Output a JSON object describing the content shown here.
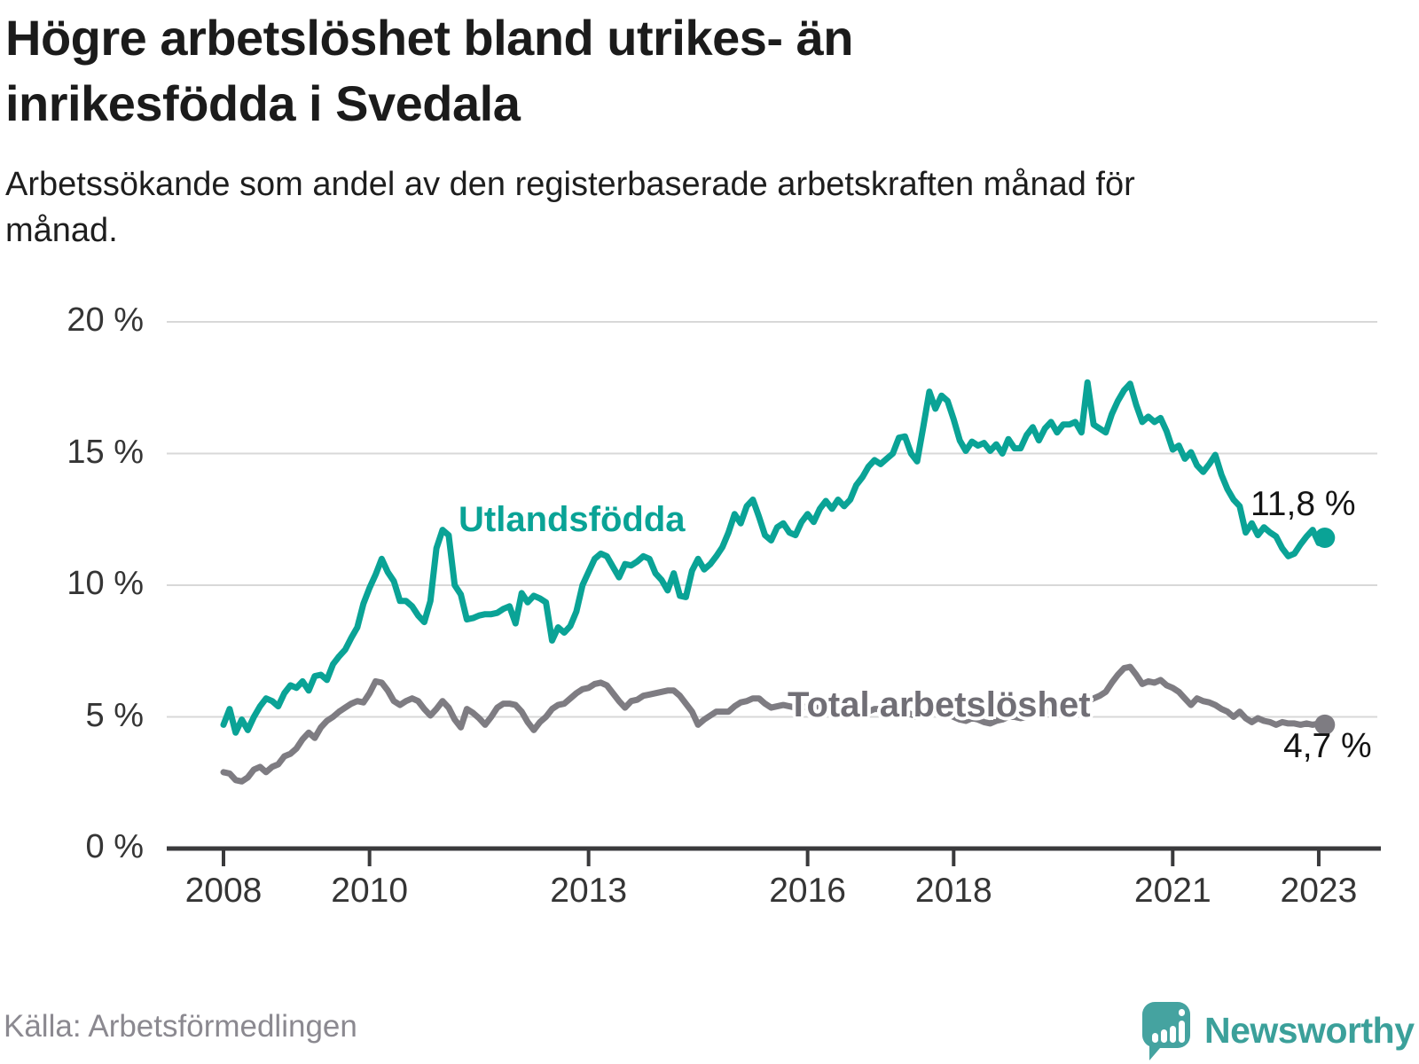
{
  "header": {
    "title": "Högre arbetslöshet bland utrikes- än inrikesfödda i Svedala",
    "subtitle": "Arbetssökande som andel av den registerbaserade arbetskraften månad för månad."
  },
  "footer": {
    "source": "Källa: Arbetsförmedlingen",
    "brand": "Newsworthy"
  },
  "chart_data": {
    "type": "line",
    "title": "Högre arbetslöshet bland utrikes- än inrikesfödda i Svedala",
    "subtitle": "Arbetssökande som andel av den registerbaserade arbetskraften månad för månad.",
    "x_unit": "month",
    "x_start_year": 2008,
    "x_end": "2023-02",
    "ylim": [
      0,
      20
    ],
    "grid": "horizontal",
    "yticks": [
      {
        "label": "0 %",
        "value": 0
      },
      {
        "label": "5 %",
        "value": 5
      },
      {
        "label": "10 %",
        "value": 10
      },
      {
        "label": "15 %",
        "value": 15
      },
      {
        "label": "20 %",
        "value": 20
      }
    ],
    "xticks": [
      2008,
      2010,
      2013,
      2016,
      2018,
      2021,
      2023
    ],
    "series": [
      {
        "name": "Utlandsfödda",
        "color": "#0aa396",
        "end_label": "11,8 %",
        "end_value": 11.8,
        "values": [
          4.7,
          5.3,
          4.4,
          4.9,
          4.5,
          5.0,
          5.4,
          5.7,
          5.6,
          5.4,
          5.9,
          6.2,
          6.1,
          6.35,
          6.0,
          6.55,
          6.6,
          6.4,
          7.0,
          7.3,
          7.55,
          8.0,
          8.4,
          9.3,
          9.9,
          10.4,
          11.0,
          10.5,
          10.15,
          9.4,
          9.4,
          9.2,
          8.85,
          8.6,
          9.4,
          11.4,
          12.1,
          11.9,
          10.0,
          9.65,
          8.7,
          8.75,
          8.85,
          8.9,
          8.9,
          8.95,
          9.1,
          9.2,
          8.55,
          9.7,
          9.35,
          9.6,
          9.5,
          9.35,
          7.9,
          8.4,
          8.2,
          8.45,
          9.0,
          10.0,
          10.5,
          11.0,
          11.2,
          11.1,
          10.7,
          10.3,
          10.8,
          10.75,
          10.9,
          11.1,
          11.0,
          10.45,
          10.2,
          9.8,
          10.45,
          9.6,
          9.55,
          10.55,
          11.0,
          10.6,
          10.8,
          11.1,
          11.45,
          12.0,
          12.7,
          12.35,
          13.0,
          13.25,
          12.6,
          11.9,
          11.7,
          12.2,
          12.35,
          12.0,
          11.9,
          12.4,
          12.7,
          12.4,
          12.9,
          13.2,
          12.9,
          13.25,
          13.0,
          13.25,
          13.8,
          14.1,
          14.5,
          14.75,
          14.6,
          14.8,
          15.0,
          15.6,
          15.65,
          15.0,
          14.7,
          16.0,
          17.35,
          16.7,
          17.2,
          17.0,
          16.3,
          15.5,
          15.1,
          15.45,
          15.3,
          15.4,
          15.1,
          15.35,
          15.0,
          15.55,
          15.2,
          15.2,
          15.7,
          16.0,
          15.5,
          15.95,
          16.2,
          15.8,
          16.1,
          16.1,
          16.2,
          15.8,
          17.7,
          16.1,
          15.95,
          15.8,
          16.5,
          17.0,
          17.4,
          17.65,
          16.85,
          16.2,
          16.4,
          16.2,
          16.35,
          15.85,
          15.15,
          15.3,
          14.8,
          15.05,
          14.55,
          14.3,
          14.6,
          14.95,
          14.2,
          13.65,
          13.25,
          13.0,
          12.0,
          12.35,
          11.9,
          12.2,
          12.0,
          11.85,
          11.4,
          11.1,
          11.2,
          11.55,
          11.85,
          12.1,
          11.6,
          11.8
        ]
      },
      {
        "name": "Total arbetslöshet",
        "color": "#7e7c82",
        "end_label": "4,7 %",
        "end_value": 4.7,
        "values": [
          2.9,
          2.85,
          2.6,
          2.55,
          2.7,
          3.0,
          3.1,
          2.9,
          3.1,
          3.2,
          3.5,
          3.6,
          3.8,
          4.15,
          4.4,
          4.2,
          4.6,
          4.85,
          5.0,
          5.2,
          5.35,
          5.5,
          5.6,
          5.55,
          5.9,
          6.35,
          6.3,
          6.0,
          5.6,
          5.45,
          5.6,
          5.7,
          5.6,
          5.3,
          5.05,
          5.3,
          5.6,
          5.35,
          4.9,
          4.6,
          5.3,
          5.15,
          4.95,
          4.7,
          5.0,
          5.35,
          5.5,
          5.5,
          5.45,
          5.2,
          4.8,
          4.5,
          4.8,
          5.0,
          5.3,
          5.45,
          5.5,
          5.7,
          5.9,
          6.05,
          6.1,
          6.25,
          6.3,
          6.2,
          5.9,
          5.6,
          5.35,
          5.6,
          5.65,
          5.8,
          5.85,
          5.9,
          5.95,
          6.0,
          6.0,
          5.8,
          5.5,
          5.2,
          4.7,
          4.9,
          5.05,
          5.2,
          5.2,
          5.2,
          5.4,
          5.55,
          5.6,
          5.7,
          5.7,
          5.5,
          5.35,
          5.4,
          5.45,
          5.4,
          5.35,
          5.4,
          5.35,
          5.4,
          5.3,
          5.2,
          5.3,
          5.2,
          5.1,
          5.2,
          5.3,
          5.25,
          5.2,
          5.3,
          5.3,
          5.2,
          5.15,
          5.25,
          5.2,
          5.1,
          5.0,
          5.15,
          5.25,
          5.3,
          5.2,
          5.1,
          5.0,
          4.9,
          4.85,
          4.95,
          4.9,
          4.8,
          4.75,
          4.85,
          4.9,
          5.0,
          5.0,
          4.95,
          5.0,
          5.1,
          5.15,
          5.2,
          5.25,
          5.3,
          5.4,
          5.45,
          5.5,
          5.55,
          5.6,
          5.7,
          5.8,
          5.95,
          6.3,
          6.6,
          6.85,
          6.9,
          6.6,
          6.25,
          6.35,
          6.3,
          6.4,
          6.2,
          6.1,
          5.95,
          5.7,
          5.45,
          5.7,
          5.6,
          5.55,
          5.45,
          5.3,
          5.2,
          5.0,
          5.2,
          4.95,
          4.8,
          4.95,
          4.85,
          4.8,
          4.7,
          4.8,
          4.75,
          4.75,
          4.7,
          4.75,
          4.7,
          4.75,
          4.7
        ]
      }
    ],
    "axis_color": "#3a3a3c",
    "gridline_color": "#d8d8d8",
    "source": "Källa: Arbetsförmedlingen"
  }
}
